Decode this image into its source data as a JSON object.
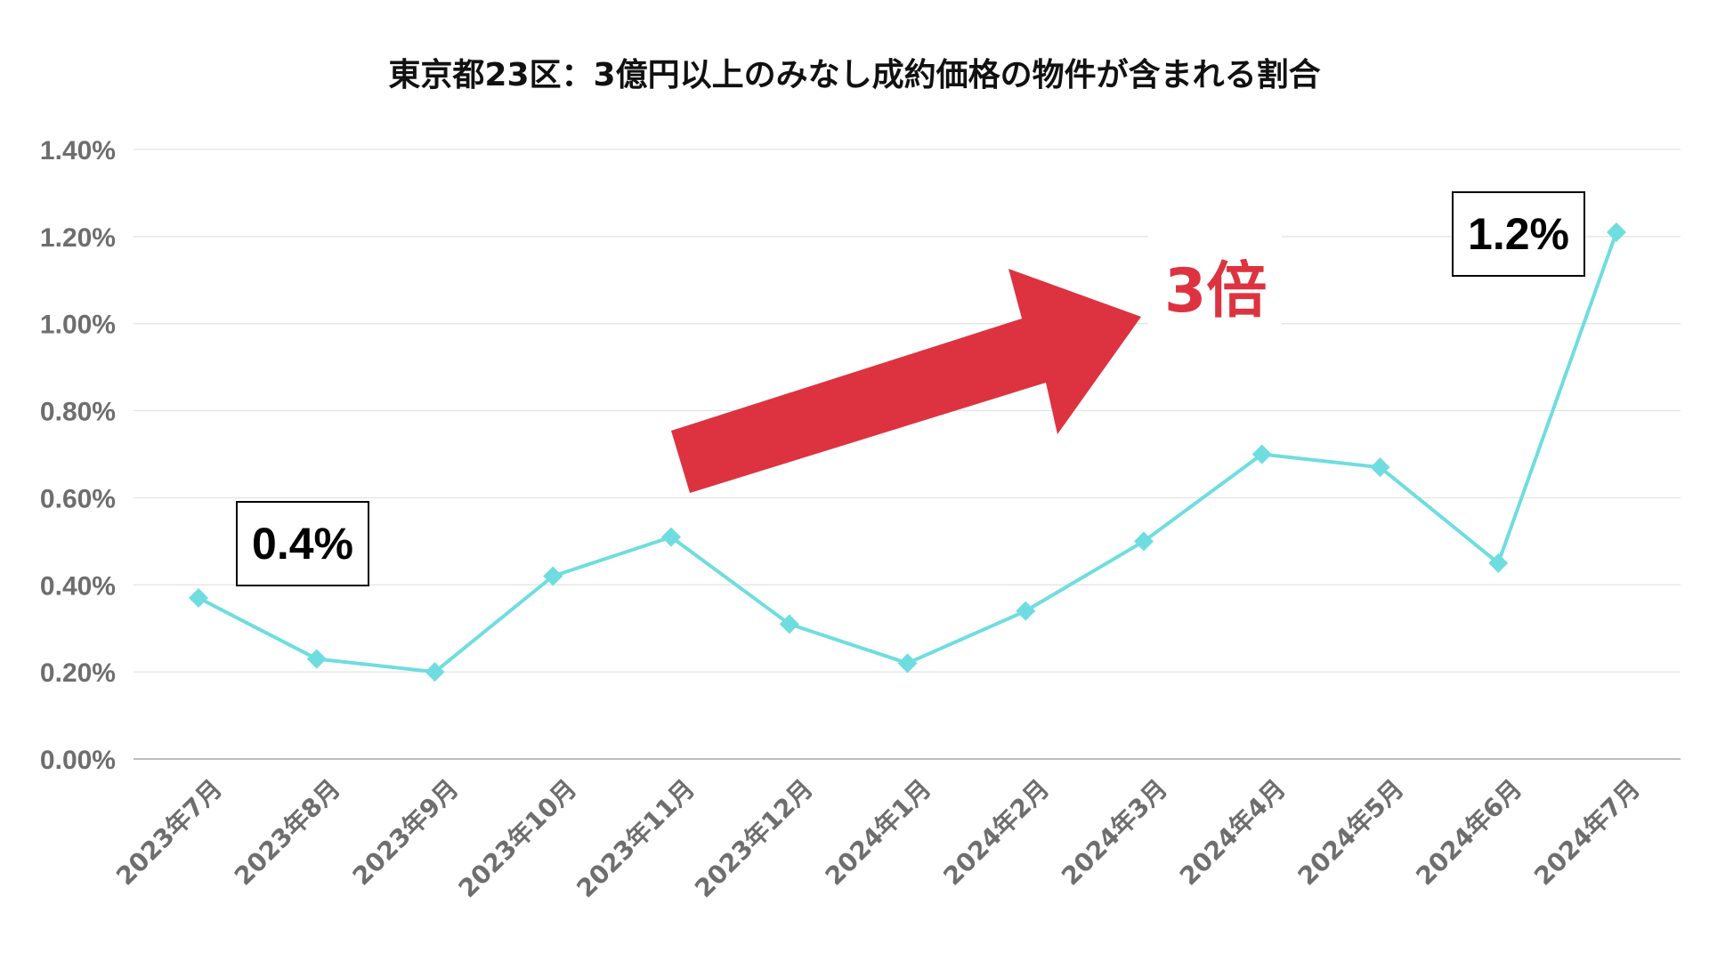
{
  "colors": {
    "line": "#6fdddf",
    "marker": "#6fdddf",
    "grid": "#e3e3e3",
    "axis": "#bdbdbd",
    "tick_text": "#6e6e6e",
    "arrow": "#dd3340",
    "multiplier_text": "#dd3340",
    "callout_border": "#000000"
  },
  "annotations": {
    "start_value": "0.4%",
    "end_value": "1.2%",
    "multiplier": "3倍"
  },
  "chart_data": {
    "type": "line",
    "title": "東京都23区：3億円以上のみなし成約価格の物件が含まれる割合",
    "xlabel": "",
    "ylabel": "",
    "categories": [
      "2023年7月",
      "2023年8月",
      "2023年9月",
      "2023年10月",
      "2023年11月",
      "2023年12月",
      "2024年1月",
      "2024年2月",
      "2024年3月",
      "2024年4月",
      "2024年5月",
      "2024年6月",
      "2024年7月"
    ],
    "series": [
      {
        "values": [
          0.37,
          0.23,
          0.2,
          0.42,
          0.51,
          0.31,
          0.22,
          0.34,
          0.5,
          0.7,
          0.67,
          0.45,
          1.21
        ]
      }
    ],
    "ylim": [
      0,
      1.4
    ],
    "yticks": [
      0,
      0.2,
      0.4,
      0.6,
      0.8,
      1.0,
      1.2,
      1.4
    ],
    "ytick_labels": [
      "0.00%",
      "0.20%",
      "0.40%",
      "0.60%",
      "0.80%",
      "1.00%",
      "1.20%",
      "1.40%"
    ],
    "grid": true,
    "legend": "none",
    "marker": "diamond"
  }
}
